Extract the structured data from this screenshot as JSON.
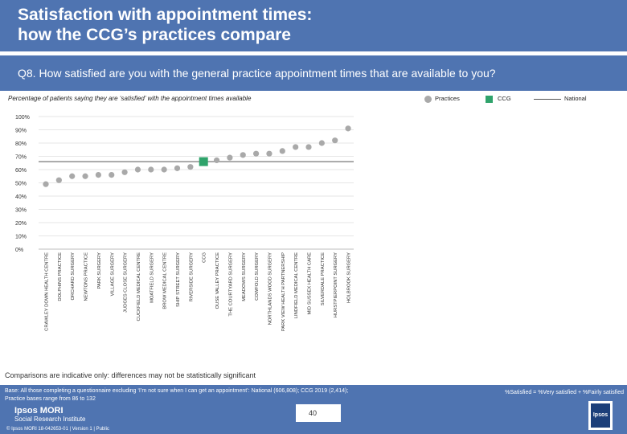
{
  "header": {
    "title_line1": "Satisfaction with appointment times:",
    "title_line2": "how the CCG’s practices compare"
  },
  "question": "Q8. How satisfied are you with the general practice appointment times that are available to you?",
  "subtitle": "Percentage of patients saying they are ‘satisfied’ with the appointment times available",
  "legend": {
    "practices": "Practices",
    "ccg": "CCG",
    "national": "National"
  },
  "colors": {
    "header": "#4f74b1",
    "practices": "#a9a9a9",
    "ccg": "#2fa36b",
    "national": "#555555"
  },
  "note": "Comparisons are indicative only: differences may not be statistically significant",
  "base": {
    "line1": "Base: All those completing a questionnaire excluding ‘I’m not sure when I can get an appointment’: National (606,808); CCG 2019 (2,414);",
    "line2": "Practice bases range from 86 to 132"
  },
  "formula": "%Satisfied = %Very satisfied + %Fairly satisfied",
  "page_number": "40",
  "logo": {
    "name": "Ipsos MORI",
    "sub": "Social Research Institute",
    "badge": "Ipsos"
  },
  "footer": "© Ipsos MORI      18-042653-01 | Version 1 | Public",
  "chart_data": {
    "type": "scatter",
    "y_ticks": [
      "0%",
      "10%",
      "20%",
      "30%",
      "40%",
      "50%",
      "60%",
      "70%",
      "80%",
      "90%",
      "100%"
    ],
    "ylim": [
      0,
      100
    ],
    "categories": [
      "CRAWLEY DOWN HEALTH CENTRE",
      "DOLPHINS PRACTICE",
      "ORCHARD SURGERY",
      "NEWTONS PRACTICE",
      "PARK SURGERY",
      "VILLAGE SURGERY",
      "JUDGES CLOSE SURGERY",
      "CUCKFIELD MEDICAL CENTRE",
      "MOATFIELD SURGERY",
      "BROW MEDICAL CENTRE",
      "SHIP STREET SURGERY",
      "RIVERSIDE SURGERY",
      "CCG",
      "OUSE VALLEY PRACTICE",
      "THE COURTYARD SURGERY",
      "MEADOWS SURGERY",
      "COWFOLD SURGERY",
      "NORTHLANDS WOOD SURGERY",
      "PARK VIEW HEALTH PARTNERSHIP",
      "LINDFIELD MEDICAL CENTRE",
      "MID SUSSEX HEALTH CARE",
      "SILVERDALE PRACTICE",
      "HURSTPIERPOINT SURGERY",
      "HOLBROOK SURGERY"
    ],
    "values": [
      49,
      52,
      55,
      55,
      56,
      56,
      58,
      60,
      60,
      60,
      61,
      62,
      66,
      67,
      69,
      71,
      72,
      72,
      74,
      77,
      77,
      80,
      82,
      91
    ],
    "ccg_index": 12,
    "national": 66
  }
}
